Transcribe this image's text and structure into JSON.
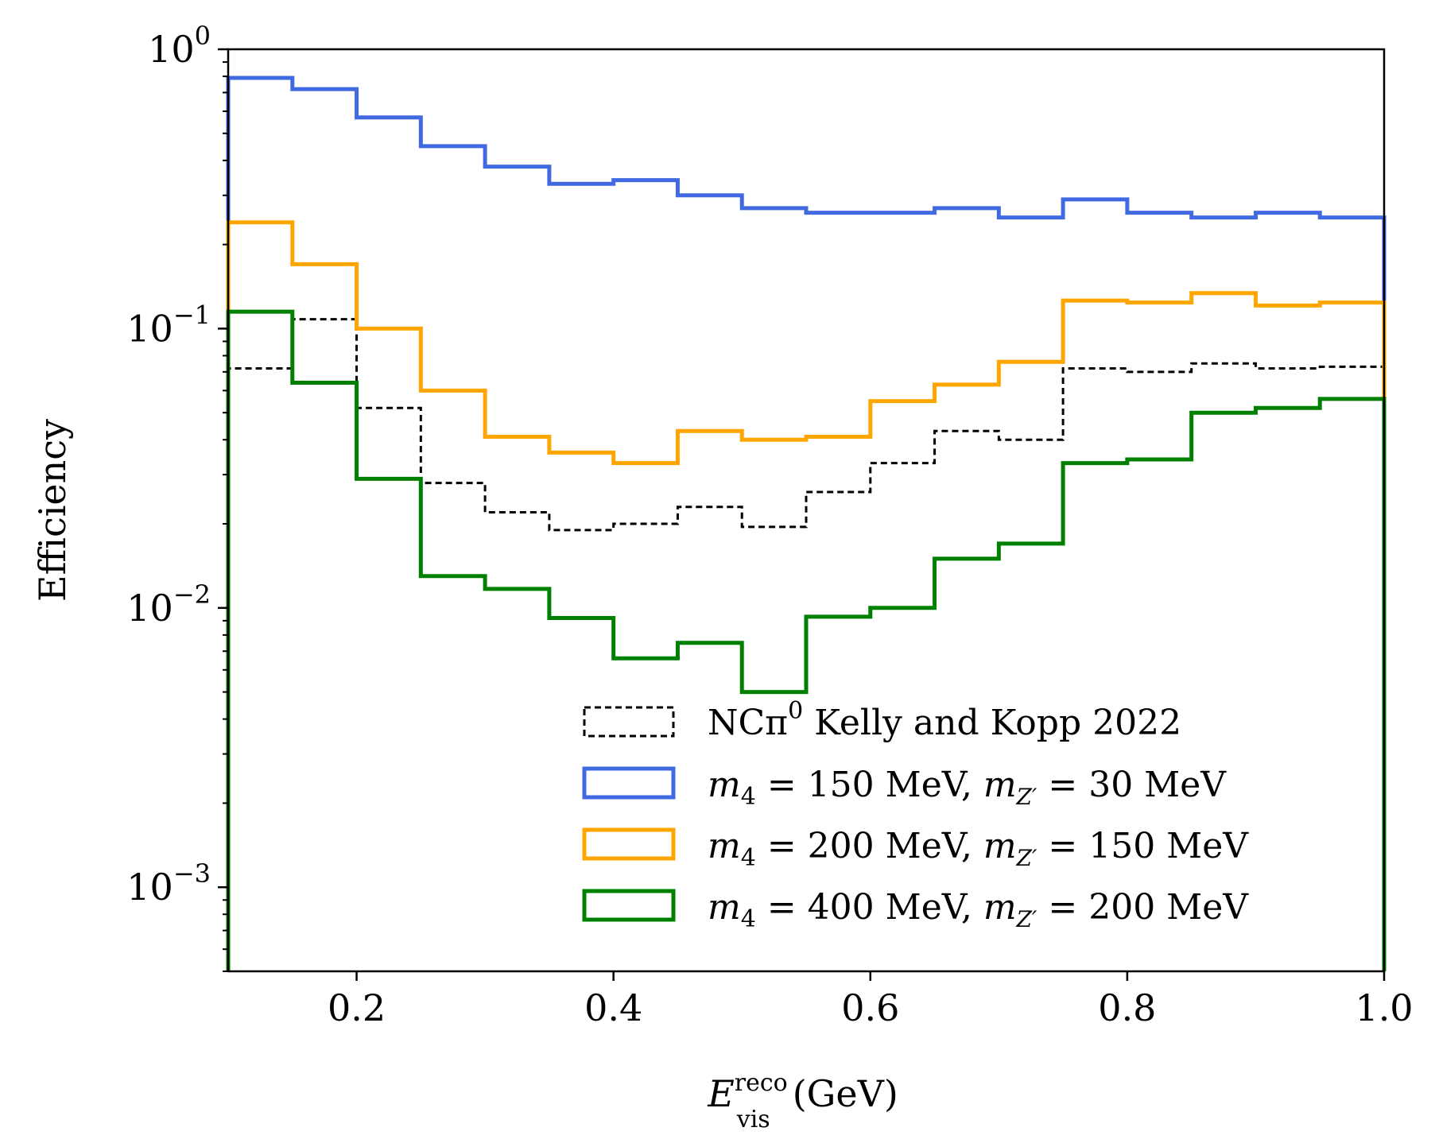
{
  "chart_data": {
    "type": "line",
    "style": "step-histogram",
    "title": "",
    "xlabel": {
      "symbol": "E",
      "sup": "reco",
      "sub": "vis",
      "unit": "(GeV)"
    },
    "ylabel": "Efficiency",
    "xlim": [
      0.1,
      1.0
    ],
    "ylim": [
      0.0005,
      1.0
    ],
    "yscale": "log",
    "x_ticks": [
      {
        "value": 0.2,
        "label": "0.2"
      },
      {
        "value": 0.4,
        "label": "0.4"
      },
      {
        "value": 0.6,
        "label": "0.6"
      },
      {
        "value": 0.8,
        "label": "0.8"
      },
      {
        "value": 1.0,
        "label": "1.0"
      }
    ],
    "y_ticks": [
      {
        "value": 1,
        "base": "10",
        "exp": "0"
      },
      {
        "value": 0.1,
        "base": "10",
        "exp": "−1"
      },
      {
        "value": 0.01,
        "base": "10",
        "exp": "−2"
      },
      {
        "value": 0.001,
        "base": "10",
        "exp": "−3"
      }
    ],
    "grid": false,
    "legend_position": "lower-right",
    "bin_edges": [
      0.1,
      0.15,
      0.2,
      0.25,
      0.3,
      0.35,
      0.4,
      0.45,
      0.5,
      0.55,
      0.6,
      0.65,
      0.7,
      0.75,
      0.8,
      0.85,
      0.9,
      0.95,
      1.0
    ],
    "series": [
      {
        "name": "NCπ0 Kelly and Kopp 2022",
        "legend": {
          "prefix": "NCπ",
          "sup": "0",
          "suffix": " Kelly and Kopp 2022"
        },
        "color": "#000000",
        "dashed": true,
        "values": [
          0.072,
          0.108,
          0.052,
          0.028,
          0.022,
          0.019,
          0.02,
          0.023,
          0.0195,
          0.026,
          0.033,
          0.043,
          0.04,
          0.072,
          0.07,
          0.075,
          0.072,
          0.073
        ]
      },
      {
        "name": "m4 = 150 MeV, mZ' = 30 MeV",
        "legend": {
          "m4": "150 MeV",
          "mz": "30 MeV"
        },
        "color": "#4169e1",
        "dashed": false,
        "values": [
          0.79,
          0.72,
          0.57,
          0.45,
          0.38,
          0.33,
          0.34,
          0.3,
          0.27,
          0.26,
          0.26,
          0.27,
          0.25,
          0.29,
          0.26,
          0.25,
          0.26,
          0.25
        ]
      },
      {
        "name": "m4 = 200 MeV, mZ' = 150 MeV",
        "legend": {
          "m4": "200 MeV",
          "mz": "150 MeV"
        },
        "color": "#ffa500",
        "dashed": false,
        "values": [
          0.24,
          0.17,
          0.1,
          0.06,
          0.041,
          0.036,
          0.033,
          0.043,
          0.04,
          0.041,
          0.055,
          0.063,
          0.076,
          0.126,
          0.124,
          0.134,
          0.121,
          0.124
        ]
      },
      {
        "name": "m4 = 400 MeV, mZ' = 200 MeV",
        "legend": {
          "m4": "400 MeV",
          "mz": "200 MeV"
        },
        "color": "#008000",
        "dashed": false,
        "values": [
          0.115,
          0.064,
          0.029,
          0.013,
          0.0117,
          0.0092,
          0.0066,
          0.0075,
          0.005,
          0.0093,
          0.01,
          0.015,
          0.017,
          0.033,
          0.034,
          0.05,
          0.052,
          0.056
        ]
      }
    ]
  }
}
